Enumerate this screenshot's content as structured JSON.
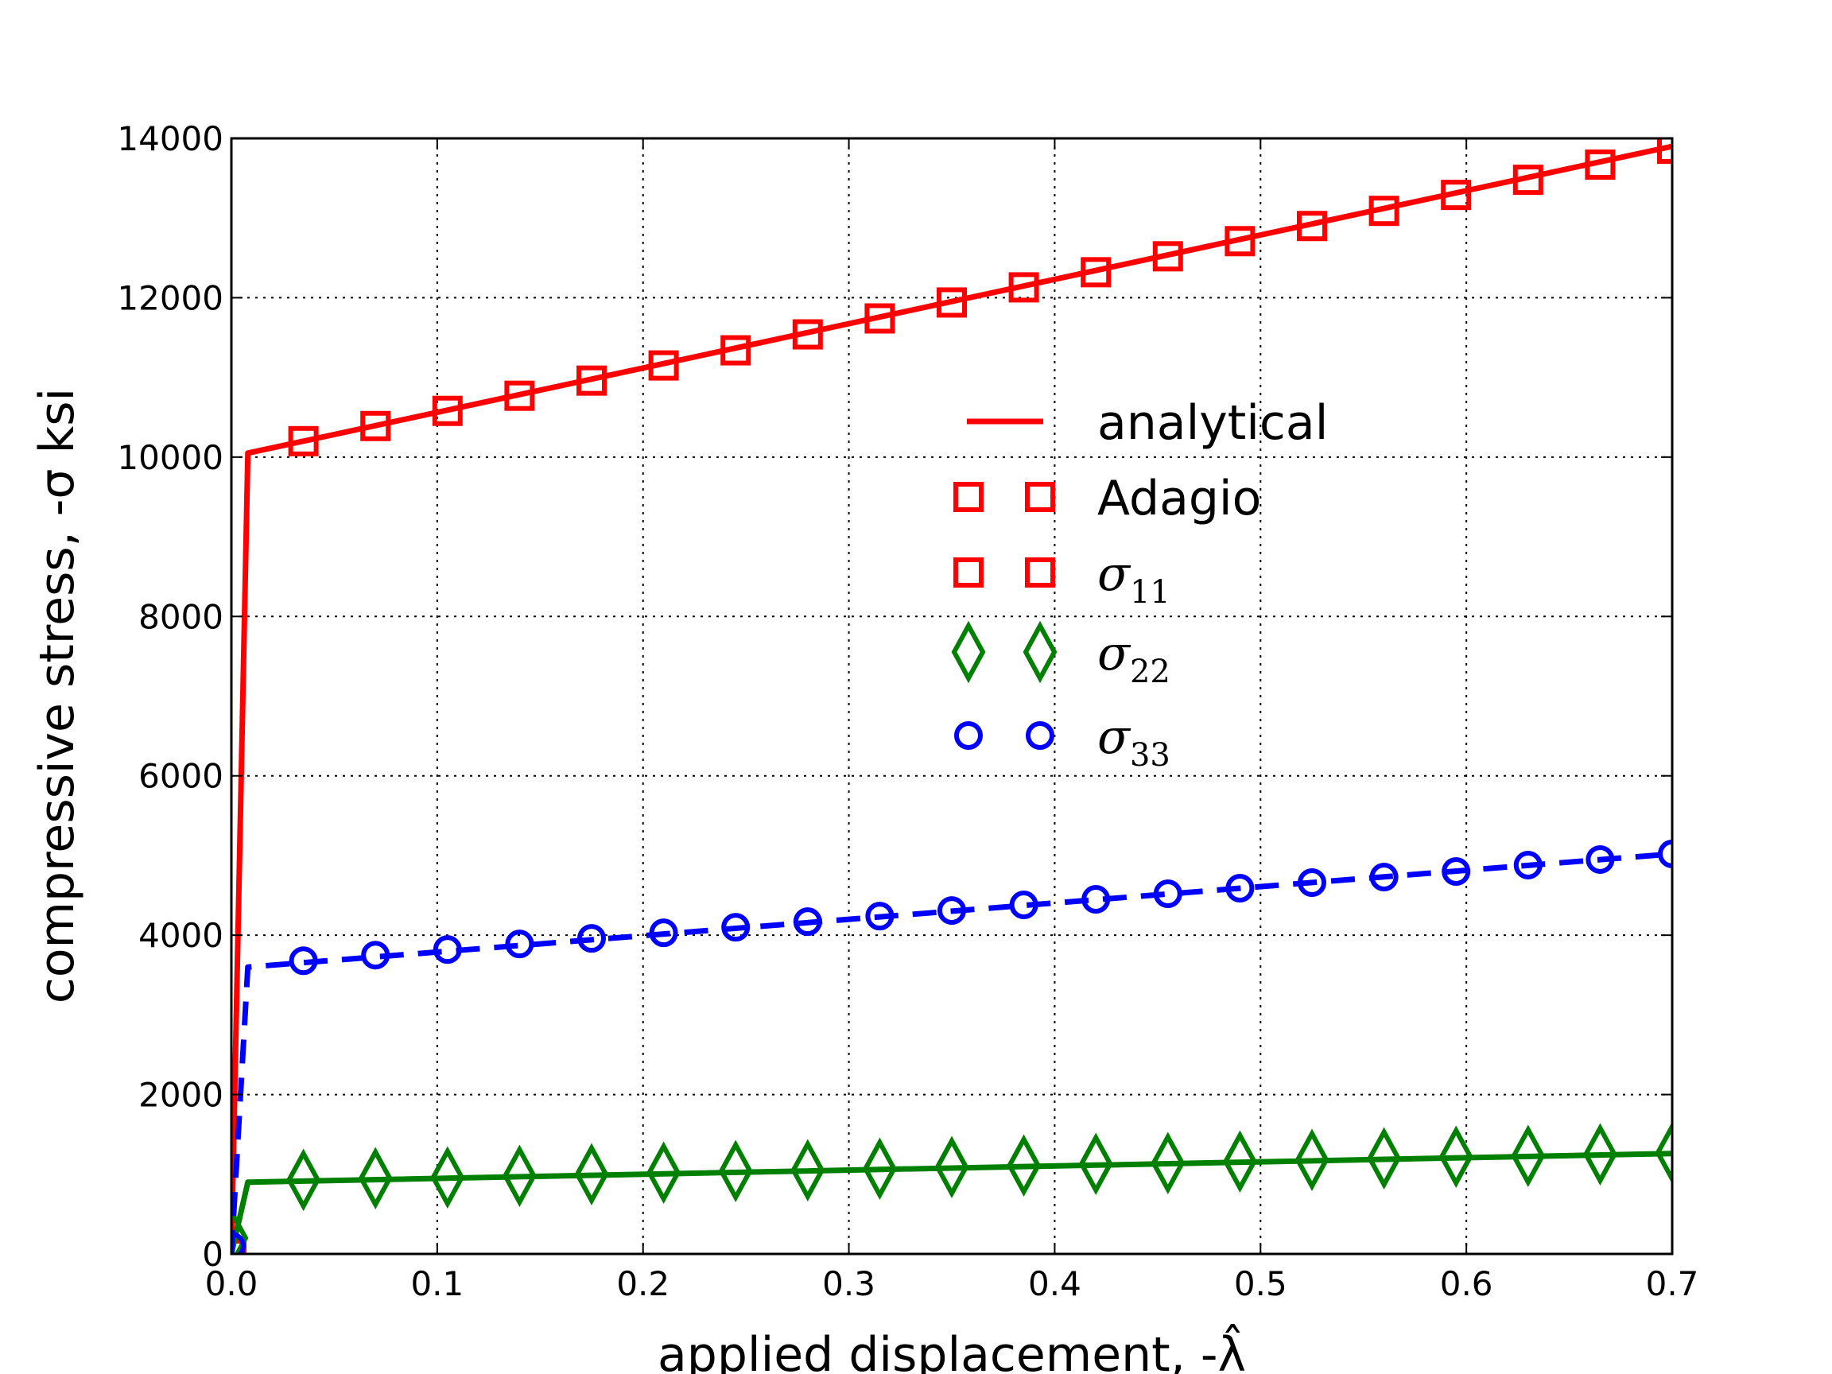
{
  "chart_data": {
    "type": "line",
    "xlabel": "applied displacement, -λ̂",
    "ylabel": "compressive stress, -σ ksi",
    "xlim": [
      0.0,
      0.7
    ],
    "ylim": [
      0,
      14000
    ],
    "x_ticks": [
      0.0,
      0.1,
      0.2,
      0.3,
      0.4,
      0.5,
      0.6,
      0.7
    ],
    "x_tick_labels": [
      "0.0",
      "0.1",
      "0.2",
      "0.3",
      "0.4",
      "0.5",
      "0.6",
      "0.7"
    ],
    "y_ticks": [
      0,
      2000,
      4000,
      6000,
      8000,
      10000,
      12000,
      14000
    ],
    "y_tick_labels": [
      "0",
      "2000",
      "4000",
      "6000",
      "8000",
      "10000",
      "12000",
      "14000"
    ],
    "grid": true,
    "legend_position": "center-right",
    "legend": [
      {
        "label": "analytical",
        "style": "line",
        "color": "#ff0000"
      },
      {
        "label": "Adagio",
        "style": "square",
        "color": "#ff0000"
      },
      {
        "label": "σ",
        "sub": "11",
        "style": "square",
        "color": "#ff0000"
      },
      {
        "label": "σ",
        "sub": "22",
        "style": "diamond",
        "color": "#008000"
      },
      {
        "label": "σ",
        "sub": "33",
        "style": "circle",
        "color": "#0000ff"
      }
    ],
    "series": [
      {
        "name": "sigma11 analytical",
        "color": "#ff0000",
        "line_style": "solid",
        "x": [
          0.0,
          0.008,
          0.7
        ],
        "y": [
          0,
          10050,
          13900
        ]
      },
      {
        "name": "sigma11 Adagio",
        "color": "#ff0000",
        "marker": "square",
        "x": [
          0.0,
          0.035,
          0.07,
          0.105,
          0.14,
          0.175,
          0.21,
          0.245,
          0.28,
          0.315,
          0.35,
          0.385,
          0.42,
          0.455,
          0.49,
          0.525,
          0.56,
          0.595,
          0.63,
          0.665,
          0.7
        ],
        "y": [
          0,
          10200,
          10390,
          10580,
          10770,
          10960,
          11150,
          11340,
          11540,
          11740,
          11940,
          12130,
          12320,
          12520,
          12710,
          12900,
          13090,
          13290,
          13480,
          13670,
          13870
        ]
      },
      {
        "name": "sigma22 analytical",
        "color": "#008000",
        "line_style": "solid",
        "x": [
          0.0,
          0.008,
          0.7
        ],
        "y": [
          0,
          900,
          1260
        ]
      },
      {
        "name": "sigma22 Adagio",
        "color": "#008000",
        "marker": "diamond",
        "x": [
          0.0,
          0.035,
          0.07,
          0.105,
          0.14,
          0.175,
          0.21,
          0.245,
          0.28,
          0.315,
          0.35,
          0.385,
          0.42,
          0.455,
          0.49,
          0.525,
          0.56,
          0.595,
          0.63,
          0.665,
          0.7
        ],
        "y": [
          200,
          930,
          950,
          960,
          980,
          1000,
          1020,
          1040,
          1050,
          1070,
          1090,
          1110,
          1130,
          1140,
          1160,
          1180,
          1200,
          1220,
          1230,
          1250,
          1270
        ]
      },
      {
        "name": "sigma33 analytical",
        "color": "#0000ff",
        "line_style": "dashed",
        "x": [
          0.0,
          0.008,
          0.7
        ],
        "y": [
          0,
          3600,
          5020
        ]
      },
      {
        "name": "sigma33 Adagio",
        "color": "#0000ff",
        "marker": "circle",
        "x": [
          0.0,
          0.035,
          0.07,
          0.105,
          0.14,
          0.175,
          0.21,
          0.245,
          0.28,
          0.315,
          0.35,
          0.385,
          0.42,
          0.455,
          0.49,
          0.525,
          0.56,
          0.595,
          0.63,
          0.665,
          0.7
        ],
        "y": [
          100,
          3680,
          3750,
          3820,
          3890,
          3960,
          4030,
          4100,
          4170,
          4240,
          4310,
          4380,
          4450,
          4520,
          4590,
          4660,
          4730,
          4800,
          4880,
          4950,
          5020
        ]
      }
    ]
  }
}
